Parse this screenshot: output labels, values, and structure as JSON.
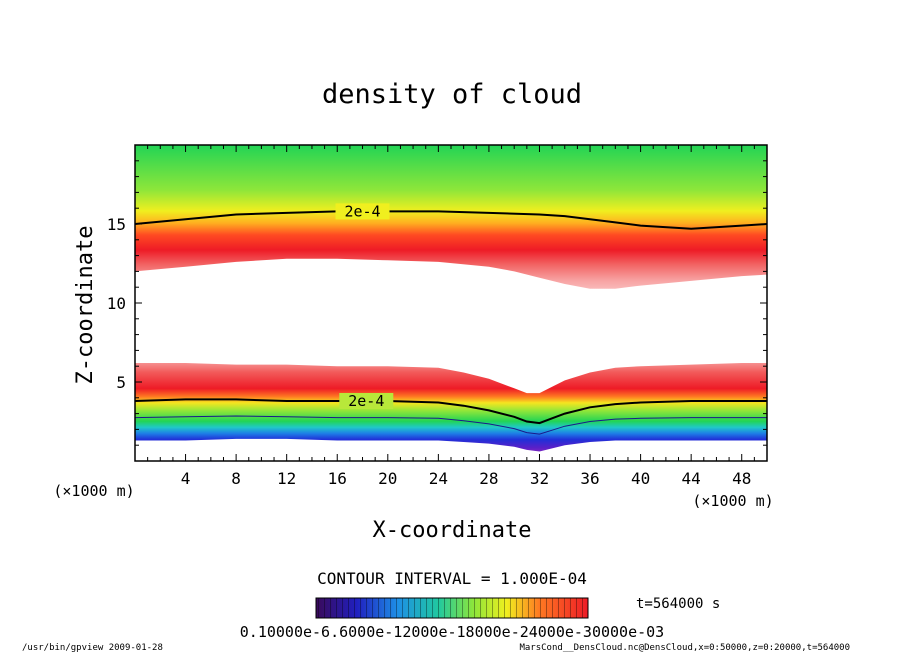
{
  "chart_data": {
    "type": "heatmap",
    "title": "density of cloud",
    "xlabel": "X-coordinate",
    "ylabel": "Z-coordinate",
    "x_unit": "(×1000 m)",
    "y_unit": "(×1000 m)",
    "xlim": [
      0,
      50
    ],
    "ylim": [
      0,
      20
    ],
    "x_ticks": [
      4,
      8,
      12,
      16,
      20,
      24,
      28,
      32,
      36,
      40,
      44,
      48
    ],
    "y_ticks": [
      5,
      10,
      15
    ],
    "contour_label": "2e-4",
    "contour_interval_text": "CONTOUR INTERVAL = 1.000E-04",
    "time_text": "t=564000 s",
    "colorbar_labels_text": "0.10000e-6.6000e-12000e-18000e-24000e-30000e-03",
    "colorbar_range": [
      0.0001,
      0.0003
    ],
    "upper_band": {
      "top_x": [
        0,
        4,
        8,
        12,
        16,
        20,
        24,
        28,
        32,
        34,
        36,
        38,
        40,
        44,
        48,
        50
      ],
      "top_z": [
        20,
        20,
        20,
        20,
        20,
        20,
        20,
        20,
        20,
        20,
        20,
        20,
        20,
        20,
        20,
        20
      ],
      "contour_x": [
        0,
        4,
        8,
        12,
        16,
        20,
        24,
        28,
        32,
        34,
        36,
        38,
        40,
        44,
        48,
        50
      ],
      "contour_z": [
        15.0,
        15.3,
        15.6,
        15.7,
        15.8,
        15.8,
        15.8,
        15.7,
        15.6,
        15.5,
        15.3,
        15.1,
        14.9,
        14.7,
        14.9,
        15.0
      ],
      "bottom_x": [
        0,
        4,
        8,
        12,
        16,
        20,
        24,
        28,
        30,
        32,
        34,
        36,
        38,
        40,
        44,
        48,
        50
      ],
      "bottom_z": [
        12.0,
        12.3,
        12.6,
        12.8,
        12.8,
        12.7,
        12.6,
        12.3,
        12.0,
        11.6,
        11.2,
        10.9,
        10.9,
        11.1,
        11.4,
        11.7,
        11.8
      ]
    },
    "lower_band": {
      "top_x": [
        0,
        4,
        8,
        12,
        16,
        20,
        24,
        26,
        28,
        30,
        31,
        32,
        33,
        34,
        36,
        38,
        40,
        44,
        48,
        50
      ],
      "top_z": [
        6.2,
        6.2,
        6.1,
        6.1,
        6.0,
        6.0,
        5.9,
        5.6,
        5.2,
        4.6,
        4.3,
        4.3,
        4.7,
        5.1,
        5.6,
        5.9,
        6.0,
        6.1,
        6.2,
        6.2
      ],
      "contour_x": [
        0,
        4,
        8,
        12,
        16,
        20,
        24,
        26,
        28,
        30,
        31,
        32,
        33,
        34,
        36,
        38,
        40,
        44,
        48,
        50
      ],
      "contour_z": [
        3.8,
        3.9,
        3.9,
        3.8,
        3.8,
        3.8,
        3.7,
        3.5,
        3.2,
        2.8,
        2.5,
        2.4,
        2.7,
        3.0,
        3.4,
        3.6,
        3.7,
        3.8,
        3.8,
        3.8
      ],
      "bottom_x": [
        0,
        4,
        8,
        12,
        16,
        20,
        24,
        26,
        28,
        30,
        31,
        32,
        33,
        34,
        36,
        38,
        40,
        44,
        48,
        50
      ],
      "bottom_z": [
        1.3,
        1.3,
        1.4,
        1.4,
        1.3,
        1.3,
        1.3,
        1.2,
        1.1,
        0.9,
        0.7,
        0.6,
        0.8,
        1.0,
        1.2,
        1.3,
        1.3,
        1.3,
        1.3,
        1.3
      ]
    }
  },
  "footer": {
    "left_text": "/usr/bin/gpview  2009-01-28",
    "right_text": "MarsCond__DensCloud.nc@DensCloud,x=0:50000,z=0:20000,t=564000"
  }
}
